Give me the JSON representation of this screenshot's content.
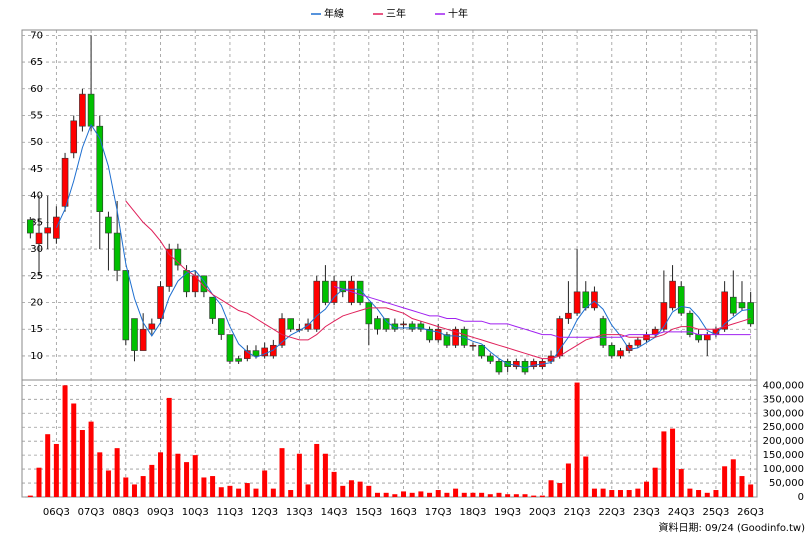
{
  "chart_data": {
    "type": "candlestick",
    "legend": [
      {
        "name": "年線",
        "color": "#1e6fd0"
      },
      {
        "name": "三年",
        "color": "#e0205a"
      },
      {
        "name": "十年",
        "color": "#a020f0"
      }
    ],
    "categories": [
      null,
      null,
      null,
      "06Q3",
      null,
      null,
      null,
      "07Q3",
      null,
      null,
      null,
      "08Q3",
      null,
      null,
      null,
      "09Q3",
      null,
      null,
      null,
      "10Q3",
      null,
      null,
      null,
      "11Q3",
      null,
      null,
      null,
      "12Q3",
      null,
      null,
      null,
      "13Q3",
      null,
      null,
      null,
      "14Q3",
      null,
      null,
      null,
      "15Q3",
      null,
      null,
      null,
      "16Q3",
      null,
      null,
      null,
      "17Q3",
      null,
      null,
      null,
      "18Q3",
      null,
      null,
      null,
      "19Q3",
      null,
      null,
      null,
      "20Q3",
      null,
      null,
      null,
      "21Q3",
      null,
      null,
      null,
      "22Q3",
      null,
      null,
      null,
      "23Q3",
      null,
      null,
      null,
      "24Q3",
      null,
      null,
      null,
      "25Q3",
      null,
      null,
      null,
      "26Q3"
    ],
    "open": [
      35.5,
      31,
      33,
      32,
      38,
      48,
      53,
      59,
      53,
      36,
      33,
      26,
      17,
      11,
      15,
      17,
      23,
      30,
      26,
      22,
      25,
      21,
      17,
      14,
      9.5,
      9.5,
      11,
      10,
      10,
      12,
      17,
      15,
      15,
      15,
      24,
      20,
      24,
      20,
      24,
      20,
      17,
      17,
      16,
      16,
      16,
      16,
      15,
      13,
      14,
      12,
      15,
      12,
      12,
      10,
      9,
      9,
      8,
      9,
      8,
      8,
      9,
      10,
      17,
      18,
      22,
      19,
      17,
      12,
      10,
      11,
      12,
      13,
      14,
      15,
      19,
      23,
      18,
      14,
      13,
      14,
      15,
      21,
      20,
      20
    ],
    "high": [
      36,
      40,
      40,
      38,
      48,
      55,
      60,
      70,
      55,
      37,
      39,
      26,
      17,
      18,
      17,
      24,
      31,
      31,
      27,
      26,
      25,
      21,
      17,
      14,
      10,
      12,
      12,
      12.5,
      13,
      18,
      17,
      16,
      17,
      25,
      27,
      25,
      24,
      25,
      24,
      20,
      17.5,
      17,
      17,
      16.5,
      16.5,
      16.5,
      15.5,
      16,
      14.5,
      15.5,
      15.5,
      12.5,
      12,
      10.5,
      9.5,
      9.5,
      9.5,
      9.5,
      9.5,
      9.5,
      11,
      17.5,
      24,
      30,
      24,
      23,
      17.5,
      12.5,
      11.5,
      12.5,
      13.5,
      14.5,
      15.5,
      26,
      27,
      24,
      18.5,
      15,
      14.5,
      15.5,
      24,
      26,
      24,
      22
    ],
    "low": [
      32,
      25,
      30,
      31,
      37,
      47,
      52,
      52,
      30,
      26,
      24,
      12,
      9,
      11,
      14,
      16,
      22,
      26,
      21,
      21,
      21,
      16,
      13,
      8.5,
      8.5,
      9,
      9.5,
      9.5,
      9.5,
      11.5,
      14.5,
      14.5,
      14.5,
      14.5,
      19.5,
      19.5,
      21,
      19.5,
      19.5,
      12,
      14,
      14.5,
      14.5,
      15,
      14.5,
      14.5,
      12.5,
      12.5,
      11.5,
      11.5,
      11.5,
      11,
      9.5,
      8.5,
      6.5,
      7,
      7.5,
      6.5,
      7.5,
      7.5,
      8.5,
      9.5,
      16,
      17.5,
      18.5,
      18.5,
      11.5,
      9.5,
      9.5,
      10.5,
      11.5,
      12.5,
      13.5,
      14.5,
      18.5,
      17.5,
      13.5,
      12.5,
      10,
      13.5,
      14.5,
      17.5,
      18.5,
      15.5
    ],
    "close": [
      33,
      33,
      34,
      36,
      47,
      54,
      59,
      53,
      37,
      33,
      26,
      13,
      11,
      15,
      16,
      23,
      30,
      27,
      22,
      25,
      22,
      17,
      14,
      9,
      9,
      11,
      10,
      11.5,
      12,
      17,
      15,
      15,
      16,
      24,
      20,
      24,
      22,
      24,
      20,
      16,
      15,
      15,
      15,
      16,
      15,
      15,
      13,
      15,
      12,
      15,
      12,
      12,
      10,
      9,
      7,
      8,
      9,
      7,
      9,
      9,
      10,
      17,
      18,
      22,
      19,
      22,
      12,
      10,
      11,
      12,
      13,
      14,
      15,
      20,
      24,
      18,
      14,
      13,
      14,
      15,
      22,
      18,
      19,
      16
    ],
    "up_color": "#ff0000",
    "down_color": "#00c000",
    "series": [
      {
        "name": "年線",
        "color": "#1e6fd0",
        "values": [
          null,
          null,
          null,
          34,
          37.5,
          42.75,
          49,
          53.25,
          50.75,
          45.5,
          37.25,
          27.25,
          20.75,
          16.25,
          13.75,
          16.25,
          21,
          24,
          25.5,
          26,
          24,
          21.5,
          19.5,
          15.5,
          12.25,
          10.75,
          9.75,
          10.4,
          11.1,
          12.6,
          13.9,
          14.75,
          15.75,
          17.5,
          18.75,
          21,
          22.5,
          22.5,
          22.5,
          20.5,
          18.75,
          16.5,
          15.25,
          15.25,
          15.25,
          15.25,
          14.75,
          14.5,
          13.75,
          13.75,
          13.5,
          12.75,
          12.25,
          10.75,
          9.5,
          8.5,
          8.25,
          7.75,
          8.25,
          8.5,
          8.75,
          11.25,
          13.5,
          16.75,
          19,
          20.25,
          18.75,
          15.75,
          13.75,
          11.25,
          11.5,
          12.5,
          13.5,
          15.5,
          18.25,
          19.25,
          19,
          17.25,
          14.75,
          14,
          16,
          17.25,
          18.5,
          18.75
        ]
      },
      {
        "name": "三年",
        "color": "#e0205a",
        "values": [
          null,
          null,
          null,
          null,
          null,
          null,
          null,
          null,
          null,
          null,
          null,
          39,
          37,
          35,
          33.5,
          31.5,
          29,
          27.5,
          26,
          25,
          23,
          21.5,
          20.5,
          19.5,
          18.5,
          18,
          17,
          16,
          15,
          14,
          13.5,
          13,
          13,
          14,
          15.5,
          16.5,
          17.5,
          18,
          18.5,
          19,
          19,
          19,
          18.5,
          18,
          17,
          16.5,
          16,
          15.5,
          15,
          14.5,
          14,
          13.5,
          13,
          12.5,
          12,
          11.5,
          11,
          10.5,
          10,
          9.5,
          9.5,
          10,
          11,
          12,
          13,
          13.5,
          14,
          14,
          14,
          13.5,
          13.5,
          13.5,
          13.5,
          14,
          15,
          15.5,
          15.5,
          15,
          15,
          15,
          15.5,
          16,
          16.5,
          17
        ]
      },
      {
        "name": "十年",
        "color": "#a020f0",
        "values": [
          null,
          null,
          null,
          null,
          null,
          null,
          null,
          null,
          null,
          null,
          null,
          null,
          null,
          null,
          null,
          null,
          null,
          null,
          null,
          null,
          null,
          null,
          null,
          null,
          null,
          null,
          null,
          null,
          null,
          null,
          null,
          null,
          null,
          null,
          null,
          23,
          22.5,
          22,
          21.5,
          21,
          20.5,
          20,
          19.5,
          19,
          18.5,
          18,
          17.5,
          17.5,
          17,
          17,
          16.5,
          16.5,
          16.5,
          16,
          16,
          16,
          15.5,
          15,
          14.5,
          14,
          14,
          13.5,
          13.5,
          13.5,
          13.5,
          13.5,
          13.5,
          13.5,
          13.5,
          14,
          14,
          14,
          14,
          14.5,
          14.5,
          14.5,
          14.5,
          14,
          14,
          14,
          14,
          14,
          14,
          14
        ]
      }
    ],
    "ylim": [
      5.5,
      71
    ],
    "yticks": [
      10,
      15,
      20,
      25,
      30,
      35,
      40,
      45,
      50,
      55,
      60,
      65,
      70
    ],
    "grid": true,
    "volume": {
      "color": "#ff0000",
      "values": [
        5000,
        105000,
        225000,
        190000,
        400000,
        335000,
        240000,
        270000,
        160000,
        95000,
        175000,
        70000,
        45000,
        75000,
        115000,
        160000,
        355000,
        155000,
        125000,
        150000,
        70000,
        75000,
        35000,
        40000,
        30000,
        50000,
        30000,
        95000,
        30000,
        175000,
        25000,
        155000,
        45000,
        190000,
        155000,
        90000,
        40000,
        60000,
        55000,
        40000,
        15000,
        15000,
        10000,
        20000,
        15000,
        20000,
        15000,
        25000,
        15000,
        30000,
        15000,
        15000,
        15000,
        10000,
        15000,
        10000,
        10000,
        10000,
        5000,
        5000,
        60000,
        50000,
        120000,
        410000,
        145000,
        30000,
        30000,
        25000,
        25000,
        25000,
        30000,
        55000,
        105000,
        235000,
        245000,
        100000,
        30000,
        25000,
        15000,
        25000,
        110000,
        135000,
        75000,
        45000
      ],
      "ylim": [
        0,
        412000
      ],
      "yticks": [
        0,
        {
          "value": 50000,
          "label": "50,000"
        },
        {
          "value": 100000,
          "label": "100,000"
        },
        {
          "value": 150000,
          "label": "150,000"
        },
        {
          "value": 200000,
          "label": "200,000"
        },
        {
          "value": 250000,
          "label": "250,000"
        },
        {
          "value": 300000,
          "label": "300,000"
        },
        {
          "value": 350000,
          "label": "350,000"
        },
        {
          "value": 400000,
          "label": "400,000"
        }
      ]
    },
    "source": "資料日期: 09/24 (Goodinfo.tw)"
  }
}
